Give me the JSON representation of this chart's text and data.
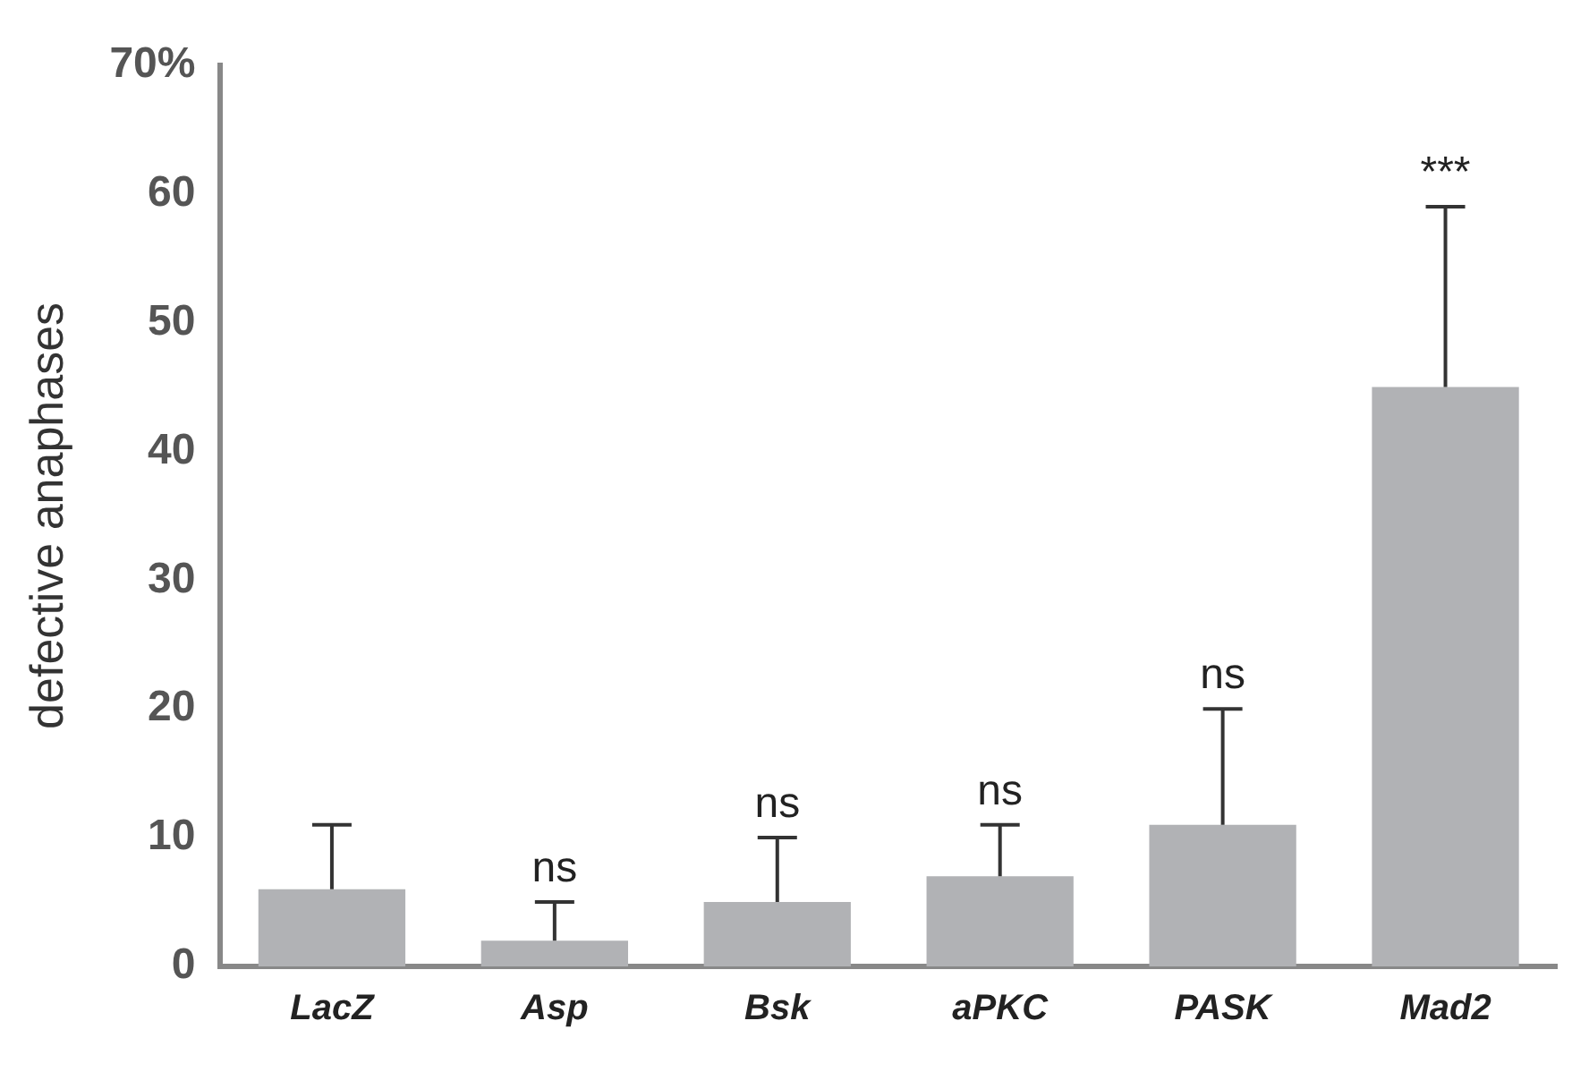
{
  "chart_data": {
    "type": "bar",
    "ylabel": "defective anaphases",
    "categories": [
      "LacZ",
      "Asp",
      "Bsk",
      "aPKC",
      "PASK",
      "Mad2"
    ],
    "values": [
      6,
      2,
      5,
      7,
      11,
      45
    ],
    "color": "#b1b2b5",
    "errors": [
      [
        6,
        11
      ],
      [
        2,
        5
      ],
      [
        5,
        10
      ],
      [
        7,
        11
      ],
      [
        11,
        20
      ],
      [
        45,
        59
      ]
    ],
    "ylim": [
      0,
      70
    ],
    "yticks": [
      0,
      10,
      20,
      30,
      40,
      50,
      60,
      {
        "value": 70,
        "label": "70%"
      }
    ],
    "grid": false,
    "legend": false,
    "annotations": [
      {
        "text": "ns",
        "x": "Asp",
        "y": 5
      },
      {
        "text": "ns",
        "x": "Bsk",
        "y": 10
      },
      {
        "text": "ns",
        "x": "aPKC",
        "y": 11
      },
      {
        "text": "ns",
        "x": "PASK",
        "y": 20
      },
      {
        "text": "***",
        "x": "Mad2",
        "y": 59
      }
    ]
  }
}
